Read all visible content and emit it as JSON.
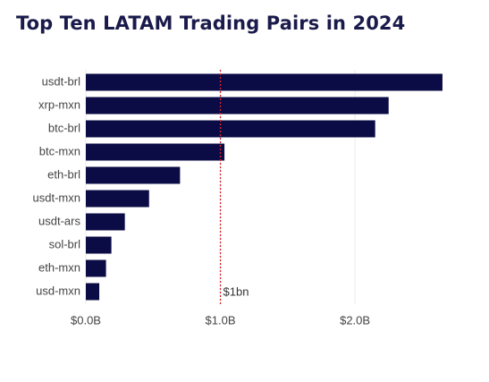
{
  "title": "Top Ten LATAM Trading Pairs in 2024",
  "chart_data": {
    "type": "bar",
    "orientation": "horizontal",
    "title": "Top Ten LATAM Trading Pairs in 2024",
    "xlabel": "",
    "ylabel": "",
    "categories": [
      "usdt-brl",
      "xrp-mxn",
      "btc-brl",
      "btc-mxn",
      "eth-brl",
      "usdt-mxn",
      "usdt-ars",
      "sol-brl",
      "eth-mxn",
      "usd-mxn"
    ],
    "values": [
      2.65,
      2.25,
      2.15,
      1.03,
      0.7,
      0.47,
      0.29,
      0.19,
      0.15,
      0.1
    ],
    "value_unit": "billions USD",
    "xlim": [
      0,
      2.75
    ],
    "xticks": [
      0,
      1,
      2
    ],
    "xtick_labels": [
      "$0.0B",
      "$1.0B",
      "$2.0B"
    ],
    "grid": "vertical",
    "bar_color": "#0b0b45",
    "reference_line": {
      "value": 1.0,
      "label": "$1bn",
      "color": "#d9262b",
      "style": "dotted"
    }
  }
}
